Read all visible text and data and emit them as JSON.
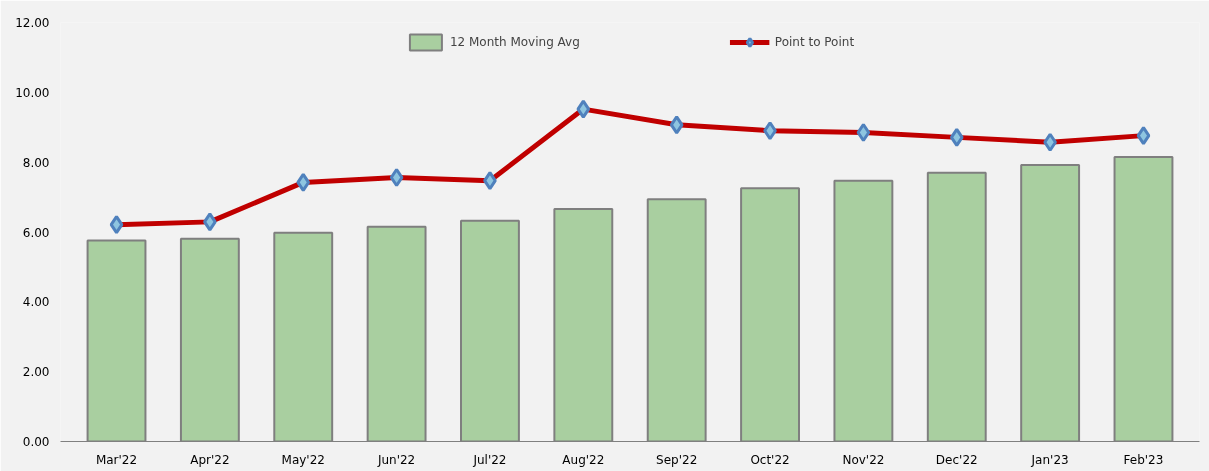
{
  "chart_data": {
    "type": "bar",
    "categories": [
      "Mar'22",
      "Apr'22",
      "May'22",
      "Jun'22",
      "Jul'22",
      "Aug'22",
      "Sep'22",
      "Oct'22",
      "Nov'22",
      "Dec'22",
      "Jan'23",
      "Feb'23"
    ],
    "series": [
      {
        "name": "12 Month Moving Avg",
        "color": "#a9cfa0",
        "values": [
          5.76,
          5.81,
          5.98,
          6.15,
          6.32,
          6.66,
          6.94,
          7.25,
          7.47,
          7.7,
          7.92,
          8.15
        ]
      },
      {
        "name": "Point to Point",
        "type": "line",
        "color": "#c00000",
        "marker": "diamond",
        "values": [
          6.21,
          6.29,
          7.42,
          7.56,
          7.47,
          9.52,
          9.07,
          8.9,
          8.85,
          8.71,
          8.57,
          8.76
        ]
      }
    ],
    "ylim": [
      0,
      12
    ],
    "yticks": [
      {
        "value": 0,
        "label": "0.00"
      },
      {
        "value": 2,
        "label": "2.00"
      },
      {
        "value": 4,
        "label": "4.00"
      },
      {
        "value": 6,
        "label": "6.00"
      },
      {
        "value": 8,
        "label": "8.00"
      },
      {
        "value": 10,
        "label": "10.00"
      },
      {
        "value": 12,
        "label": "12.00"
      }
    ],
    "grid": false,
    "legend": "top"
  }
}
